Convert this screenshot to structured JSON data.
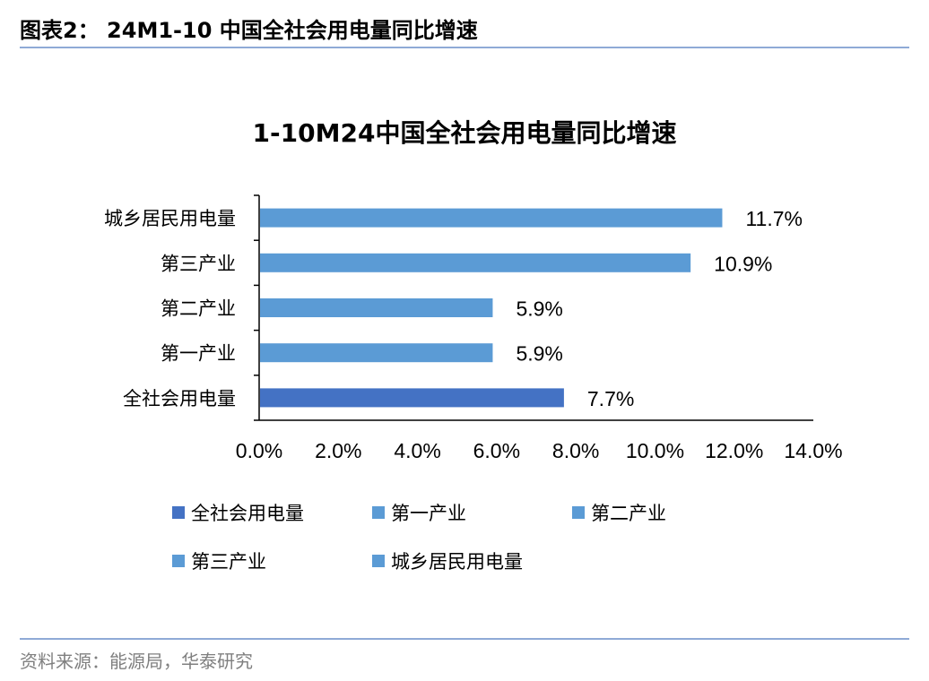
{
  "figure": {
    "header": "图表2：  24M1-10 中国全社会用电量同比增速",
    "source": "资料来源：能源局，华泰研究"
  },
  "colors": {
    "primary": "#4472c4",
    "secondary": "#5b9bd5",
    "rule": "#8faad6"
  },
  "chart_data": {
    "type": "bar",
    "orientation": "horizontal",
    "title": "1-10M24中国全社会用电量同比增速",
    "xlabel": "",
    "ylabel": "",
    "categories": [
      "全社会用电量",
      "第一产业",
      "第二产业",
      "第三产业",
      "城乡居民用电量"
    ],
    "values": [
      7.7,
      5.9,
      5.9,
      10.9,
      11.7
    ],
    "value_labels": [
      "7.7%",
      "5.9%",
      "5.9%",
      "10.9%",
      "11.7%"
    ],
    "bar_colors": [
      "#4472c4",
      "#5b9bd5",
      "#5b9bd5",
      "#5b9bd5",
      "#5b9bd5"
    ],
    "xlim": [
      0,
      14
    ],
    "x_ticks": [
      0,
      2,
      4,
      6,
      8,
      10,
      12,
      14
    ],
    "x_tick_labels": [
      "0.0%",
      "2.0%",
      "4.0%",
      "6.0%",
      "8.0%",
      "10.0%",
      "12.0%",
      "14.0%"
    ],
    "grid": false,
    "legend": {
      "position": "bottom",
      "entries": [
        {
          "name": "全社会用电量",
          "color": "#4472c4"
        },
        {
          "name": "第一产业",
          "color": "#5b9bd5"
        },
        {
          "name": "第二产业",
          "color": "#5b9bd5"
        },
        {
          "name": "第三产业",
          "color": "#5b9bd5"
        },
        {
          "name": "城乡居民用电量",
          "color": "#5b9bd5"
        }
      ]
    }
  }
}
